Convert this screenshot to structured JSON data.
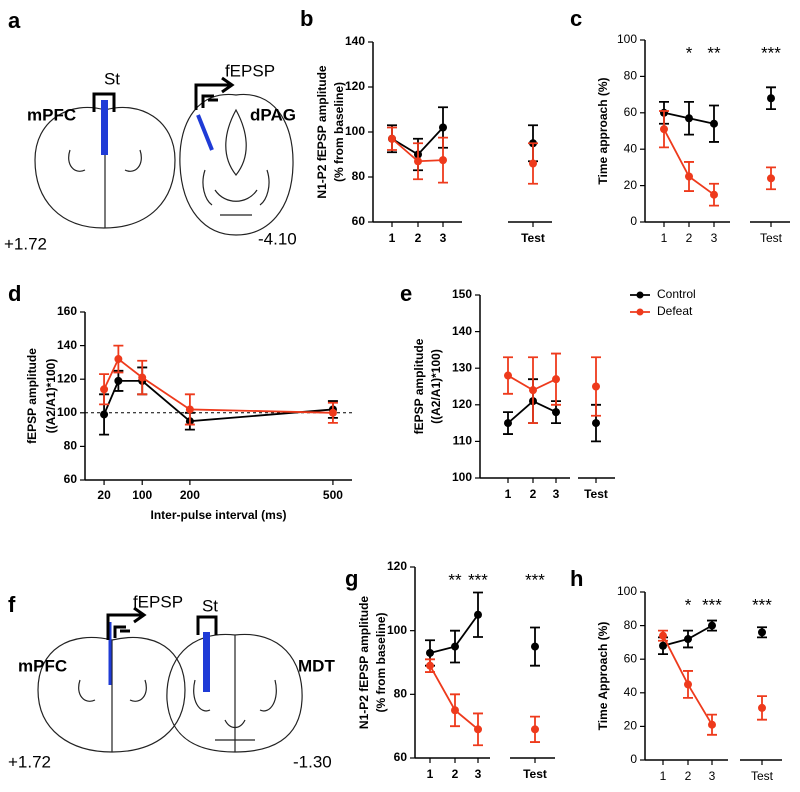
{
  "diagrams": [
    {
      "letter": "a",
      "labels": [
        "St",
        "fEPSP",
        "mPFC",
        "dPAG",
        "+1.72",
        "-4.10"
      ]
    },
    {
      "letter": "f",
      "labels": [
        "fEPSP",
        "St",
        "mPFC",
        "MDT",
        "+1.72",
        "-1.30"
      ]
    }
  ],
  "chart_data": [
    {
      "type": "line",
      "label": "b",
      "ylabel": [
        "N1-P2 fEPSP amplitude",
        "(% from baseline)"
      ],
      "categories": [
        "1",
        "2",
        "3",
        "Test"
      ],
      "ylim": [
        60,
        140
      ],
      "yticks": [
        60,
        80,
        100,
        120,
        140
      ],
      "series": [
        {
          "name": "Control",
          "color": "#000000",
          "values": [
            97,
            90,
            102,
            95
          ],
          "errors": [
            6,
            7,
            9,
            8
          ]
        },
        {
          "name": "Defeat",
          "color": "#ee3a1c",
          "values": [
            97,
            87,
            87.5,
            86
          ],
          "errors": [
            5,
            8,
            10,
            9
          ]
        }
      ]
    },
    {
      "type": "line",
      "label": "c",
      "ylabel": [
        "Time approach (%)"
      ],
      "categories": [
        "1",
        "2",
        "3",
        "Test"
      ],
      "ylim": [
        0,
        100
      ],
      "yticks": [
        0,
        20,
        40,
        60,
        80,
        100
      ],
      "annotations": [
        null,
        "*",
        "**",
        "***"
      ],
      "series": [
        {
          "name": "Control",
          "color": "#000000",
          "values": [
            60,
            57,
            54,
            68
          ],
          "errors": [
            6,
            9,
            10,
            6
          ]
        },
        {
          "name": "Defeat",
          "color": "#ee3a1c",
          "values": [
            51,
            25,
            15,
            24
          ],
          "errors": [
            10,
            8,
            6,
            6
          ]
        }
      ]
    },
    {
      "type": "line",
      "label": "d",
      "ylabel": [
        "fEPSP amplitude",
        "((A2/A1)*100)"
      ],
      "xlabel": "Inter-pulse interval (ms)",
      "x": [
        20,
        50,
        100,
        200,
        500
      ],
      "xlim": [
        -20,
        540
      ],
      "xticks": [
        20,
        100,
        200,
        500
      ],
      "ylim": [
        60,
        160
      ],
      "yticks": [
        60,
        80,
        100,
        120,
        140,
        160
      ],
      "reference_line": 100,
      "series": [
        {
          "name": "Control",
          "color": "#000000",
          "values": [
            99,
            119,
            119,
            95,
            102
          ],
          "errors": [
            12,
            6,
            8,
            5,
            5
          ]
        },
        {
          "name": "Defeat",
          "color": "#ee3a1c",
          "values": [
            114,
            132,
            121,
            102,
            100
          ],
          "errors": [
            9,
            8,
            10,
            9,
            6
          ]
        }
      ]
    },
    {
      "type": "line",
      "label": "e",
      "ylabel": [
        "fEPSP amplitude",
        "((A2/A1)*100)"
      ],
      "categories": [
        "1",
        "2",
        "3",
        "Test"
      ],
      "ylim": [
        100,
        150
      ],
      "yticks": [
        100,
        110,
        120,
        130,
        140,
        150
      ],
      "legend": "right",
      "series": [
        {
          "name": "Control",
          "color": "#000000",
          "values": [
            115,
            121,
            118,
            115
          ],
          "errors": [
            3,
            6,
            3,
            5
          ]
        },
        {
          "name": "Defeat",
          "color": "#ee3a1c",
          "values": [
            128,
            124,
            127,
            125
          ],
          "errors": [
            5,
            9,
            7,
            8
          ]
        }
      ]
    },
    {
      "type": "line",
      "label": "g",
      "ylabel": [
        "N1-P2 fEPSP amplitude",
        "(% from baseline)"
      ],
      "categories": [
        "1",
        "2",
        "3",
        "Test"
      ],
      "ylim": [
        60,
        120
      ],
      "yticks": [
        60,
        80,
        100,
        120
      ],
      "annotations": [
        null,
        "**",
        "***",
        "***"
      ],
      "series": [
        {
          "name": "Control",
          "color": "#000000",
          "values": [
            93,
            95,
            105,
            95
          ],
          "errors": [
            4,
            5,
            7,
            6
          ]
        },
        {
          "name": "Defeat",
          "color": "#ee3a1c",
          "values": [
            89,
            75,
            69,
            69
          ],
          "errors": [
            2,
            5,
            5,
            4
          ]
        }
      ]
    },
    {
      "type": "line",
      "label": "h",
      "ylabel": [
        "Time Approach (%)"
      ],
      "categories": [
        "1",
        "2",
        "3",
        "Test"
      ],
      "ylim": [
        0,
        100
      ],
      "yticks": [
        0,
        20,
        40,
        60,
        80,
        100
      ],
      "annotations": [
        null,
        "*",
        "***",
        "***"
      ],
      "series": [
        {
          "name": "Control",
          "color": "#000000",
          "values": [
            68,
            72,
            80,
            76
          ],
          "errors": [
            5,
            5,
            3,
            3
          ]
        },
        {
          "name": "Defeat",
          "color": "#ee3a1c",
          "values": [
            74,
            45,
            21,
            31
          ],
          "errors": [
            3,
            8,
            6,
            7
          ]
        }
      ]
    }
  ]
}
